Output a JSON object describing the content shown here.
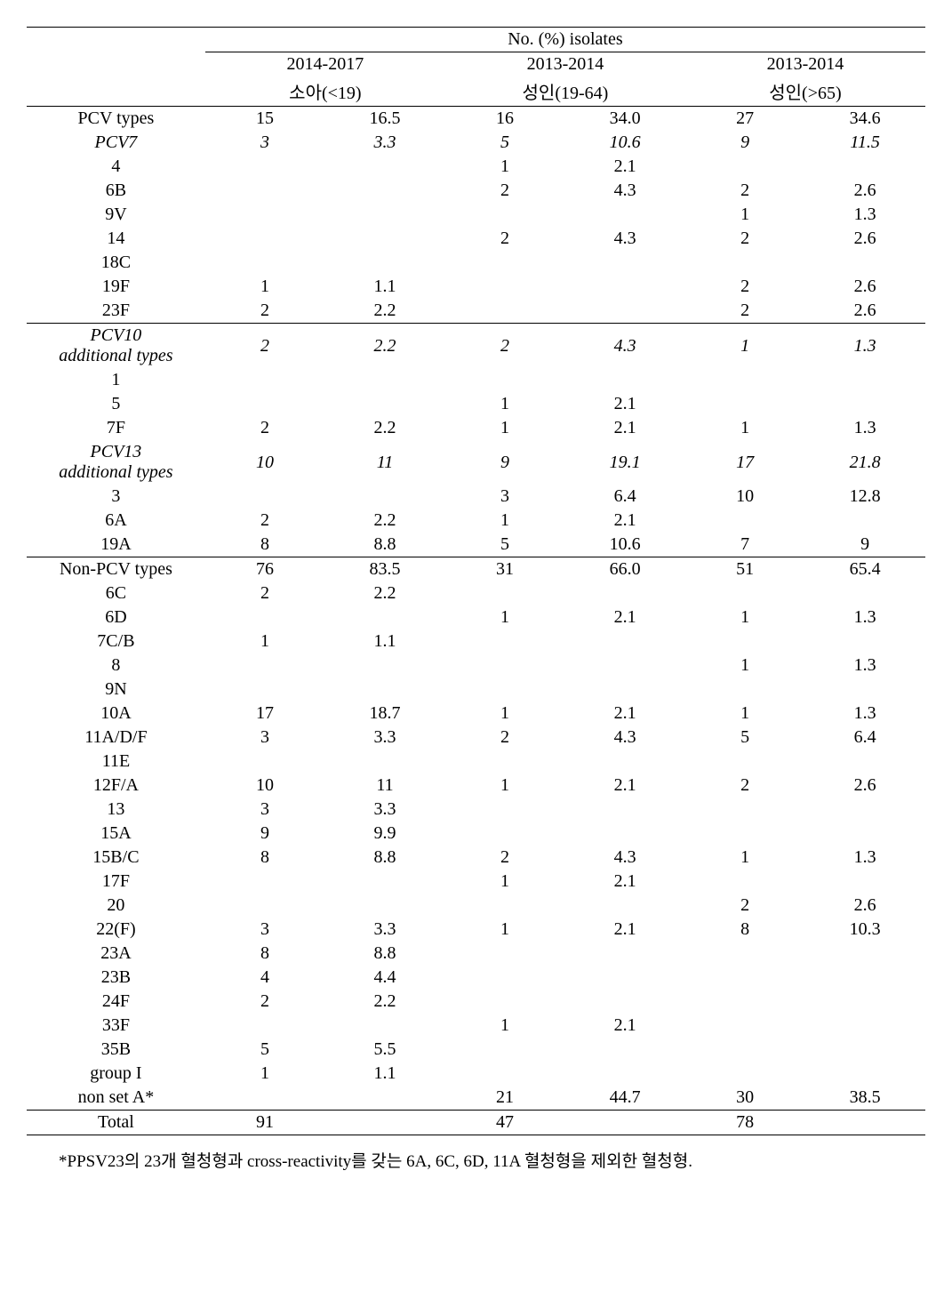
{
  "header": {
    "super": "No. (%) isolates",
    "groups": [
      {
        "period": "2014-2017",
        "age": "소아(<19)"
      },
      {
        "period": "2013-2014",
        "age": "성인(19-64)"
      },
      {
        "period": "2013-2014",
        "age": "성인(>65)"
      }
    ]
  },
  "rows": [
    {
      "label": "PCV types",
      "vals": [
        "15",
        "16.5",
        "16",
        "34.0",
        "27",
        "34.6"
      ],
      "italic": false,
      "topBorder": true
    },
    {
      "label": "PCV7",
      "vals": [
        "3",
        "3.3",
        "5",
        "10.6",
        "9",
        "11.5"
      ],
      "italic": true
    },
    {
      "label": "4",
      "vals": [
        "",
        "",
        "1",
        "2.1",
        "",
        ""
      ]
    },
    {
      "label": "6B",
      "vals": [
        "",
        "",
        "2",
        "4.3",
        "2",
        "2.6"
      ]
    },
    {
      "label": "9V",
      "vals": [
        "",
        "",
        "",
        "",
        "1",
        "1.3"
      ]
    },
    {
      "label": "14",
      "vals": [
        "",
        "",
        "2",
        "4.3",
        "2",
        "2.6"
      ]
    },
    {
      "label": "18C",
      "vals": [
        "",
        "",
        "",
        "",
        "",
        ""
      ]
    },
    {
      "label": "19F",
      "vals": [
        "1",
        "1.1",
        "",
        "",
        "2",
        "2.6"
      ]
    },
    {
      "label": "23F",
      "vals": [
        "2",
        "2.2",
        "",
        "",
        "2",
        "2.6"
      ],
      "bottomBorder": true
    },
    {
      "label": "PCV10\nadditional types",
      "vals": [
        "2",
        "2.2",
        "2",
        "4.3",
        "1",
        "1.3"
      ],
      "italic": true,
      "multiline": true
    },
    {
      "label": "1",
      "vals": [
        "",
        "",
        "",
        "",
        "",
        ""
      ]
    },
    {
      "label": "5",
      "vals": [
        "",
        "",
        "1",
        "2.1",
        "",
        ""
      ]
    },
    {
      "label": "7F",
      "vals": [
        "2",
        "2.2",
        "1",
        "2.1",
        "1",
        "1.3"
      ]
    },
    {
      "label": "PCV13\nadditional types",
      "vals": [
        "10",
        "11",
        "9",
        "19.1",
        "17",
        "21.8"
      ],
      "italic": true,
      "multiline": true
    },
    {
      "label": "3",
      "vals": [
        "",
        "",
        "3",
        "6.4",
        "10",
        "12.8"
      ]
    },
    {
      "label": "6A",
      "vals": [
        "2",
        "2.2",
        "1",
        "2.1",
        "",
        ""
      ]
    },
    {
      "label": "19A",
      "vals": [
        "8",
        "8.8",
        "5",
        "10.6",
        "7",
        "9"
      ],
      "bottomBorder": true
    },
    {
      "label": "Non-PCV types",
      "vals": [
        "76",
        "83.5",
        "31",
        "66.0",
        "51",
        "65.4"
      ]
    },
    {
      "label": "6C",
      "vals": [
        "2",
        "2.2",
        "",
        "",
        "",
        ""
      ]
    },
    {
      "label": "6D",
      "vals": [
        "",
        "",
        "1",
        "2.1",
        "1",
        "1.3"
      ]
    },
    {
      "label": "7C/B",
      "vals": [
        "1",
        "1.1",
        "",
        "",
        "",
        ""
      ]
    },
    {
      "label": "8",
      "vals": [
        "",
        "",
        "",
        "",
        "1",
        "1.3"
      ]
    },
    {
      "label": "9N",
      "vals": [
        "",
        "",
        "",
        "",
        "",
        ""
      ]
    },
    {
      "label": "10A",
      "vals": [
        "17",
        "18.7",
        "1",
        "2.1",
        "1",
        "1.3"
      ]
    },
    {
      "label": "11A/D/F",
      "vals": [
        "3",
        "3.3",
        "2",
        "4.3",
        "5",
        "6.4"
      ]
    },
    {
      "label": "11E",
      "vals": [
        "",
        "",
        "",
        "",
        "",
        ""
      ]
    },
    {
      "label": "12F/A",
      "vals": [
        "10",
        "11",
        "1",
        "2.1",
        "2",
        "2.6"
      ]
    },
    {
      "label": "13",
      "vals": [
        "3",
        "3.3",
        "",
        "",
        "",
        ""
      ]
    },
    {
      "label": "15A",
      "vals": [
        "9",
        "9.9",
        "",
        "",
        "",
        ""
      ]
    },
    {
      "label": "15B/C",
      "vals": [
        "8",
        "8.8",
        "2",
        "4.3",
        "1",
        "1.3"
      ]
    },
    {
      "label": "17F",
      "vals": [
        "",
        "",
        "1",
        "2.1",
        "",
        ""
      ]
    },
    {
      "label": "20",
      "vals": [
        "",
        "",
        "",
        "",
        "2",
        "2.6"
      ]
    },
    {
      "label": "22(F)",
      "vals": [
        "3",
        "3.3",
        "1",
        "2.1",
        "8",
        "10.3"
      ]
    },
    {
      "label": "23A",
      "vals": [
        "8",
        "8.8",
        "",
        "",
        "",
        ""
      ]
    },
    {
      "label": "23B",
      "vals": [
        "4",
        "4.4",
        "",
        "",
        "",
        ""
      ]
    },
    {
      "label": "24F",
      "vals": [
        "2",
        "2.2",
        "",
        "",
        "",
        ""
      ]
    },
    {
      "label": "33F",
      "vals": [
        "",
        "",
        "1",
        "2.1",
        "",
        ""
      ]
    },
    {
      "label": "35B",
      "vals": [
        "5",
        "5.5",
        "",
        "",
        "",
        ""
      ]
    },
    {
      "label": "group I",
      "vals": [
        "1",
        "1.1",
        "",
        "",
        "",
        ""
      ]
    },
    {
      "label": "non set A*",
      "vals": [
        "",
        "",
        "21",
        "44.7",
        "30",
        "38.5"
      ],
      "bottomBorder": true
    },
    {
      "label": "Total",
      "vals": [
        "91",
        "",
        "47",
        "",
        "78",
        ""
      ],
      "bottomBorder": true
    }
  ],
  "footnote": "*PPSV23의 23개 혈청형과 cross-reactivity를 갖는 6A, 6C, 6D, 11A 혈청형을 제외한 혈청형.",
  "style": {
    "font_family": "Times New Roman, serif",
    "font_size_pt": 15,
    "border_color": "#000000",
    "background_color": "#ffffff",
    "text_color": "#000000"
  }
}
